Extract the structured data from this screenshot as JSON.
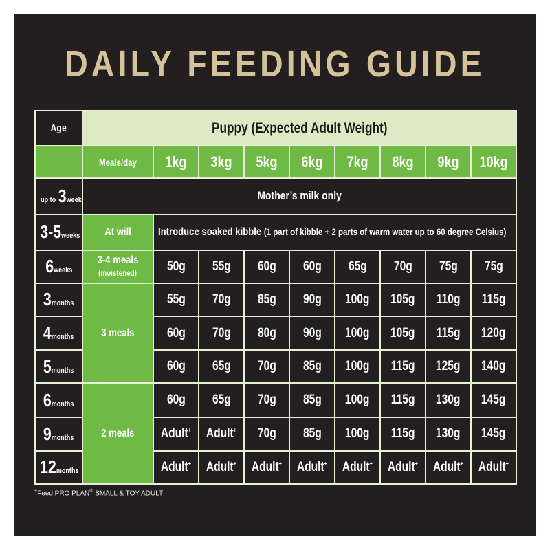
{
  "title": "DAILY FEEDING GUIDE",
  "header": {
    "age_label": "Age",
    "puppy_label": "Puppy (Expected Adult Weight)",
    "meals_label": "Meals/day",
    "weights": [
      "1kg",
      "3kg",
      "5kg",
      "6kg",
      "7kg",
      "8kg",
      "9kg",
      "10kg"
    ]
  },
  "rows": {
    "r1": {
      "pre": "up to",
      "num": "3",
      "unit": "weeks",
      "text": "Mother’s milk only"
    },
    "r2": {
      "num": "3-5",
      "unit": "weeks",
      "meals": "At will",
      "text": "Introduce soaked kibble",
      "note": "(1 part of kibble + 2 parts of warm water up to 60 degree Celsius)"
    },
    "r3": {
      "num": "6",
      "unit": "weeks",
      "meals": "3-4 meals",
      "meals_note": "(moistened)",
      "values": [
        "50g",
        "55g",
        "60g",
        "60g",
        "65g",
        "70g",
        "75g",
        "75g"
      ]
    },
    "r4": {
      "num": "3",
      "unit": "months",
      "values": [
        "55g",
        "70g",
        "85g",
        "90g",
        "100g",
        "105g",
        "110g",
        "115g"
      ]
    },
    "r5": {
      "num": "4",
      "unit": "months",
      "values": [
        "60g",
        "70g",
        "80g",
        "90g",
        "100g",
        "105g",
        "115g",
        "120g"
      ]
    },
    "r6": {
      "num": "5",
      "unit": "months",
      "values": [
        "60g",
        "65g",
        "70g",
        "85g",
        "100g",
        "115g",
        "125g",
        "140g"
      ]
    },
    "r7": {
      "num": "6",
      "unit": "months",
      "values": [
        "60g",
        "65g",
        "70g",
        "85g",
        "100g",
        "115g",
        "130g",
        "145g"
      ]
    },
    "r8": {
      "num": "9",
      "unit": "months",
      "values": [
        "Adult",
        "Adult",
        "70g",
        "85g",
        "100g",
        "115g",
        "130g",
        "145g"
      ]
    },
    "r9": {
      "num": "12",
      "unit": "months",
      "values": [
        "Adult",
        "Adult",
        "Adult",
        "Adult",
        "Adult",
        "Adult",
        "Adult",
        "Adult"
      ]
    }
  },
  "meal_groups": {
    "three": "3 meals",
    "two": "2 meals"
  },
  "adult_marker": "+",
  "footnote": {
    "mark": "+",
    "prefix": "Feed PRO PLAN",
    "reg": "®",
    "suffix": " SMALL & TOY ADULT"
  },
  "colors": {
    "background": "#231f20",
    "title": "#d4c39a",
    "header_light_green": "#dcebc6",
    "green": "#6fba44",
    "grid_lines": "#e8f0d8"
  }
}
